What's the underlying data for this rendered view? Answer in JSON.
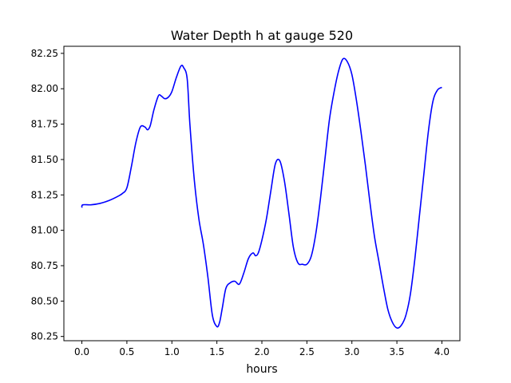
{
  "chart_data": {
    "type": "line",
    "title": "Water Depth h at gauge 520",
    "xlabel": "hours",
    "ylabel": "",
    "xlim": [
      -0.2,
      4.2
    ],
    "ylim": [
      80.22,
      82.3
    ],
    "xticks": [
      0.0,
      0.5,
      1.0,
      1.5,
      2.0,
      2.5,
      3.0,
      3.5,
      4.0
    ],
    "xtick_labels": [
      "0.0",
      "0.5",
      "1.0",
      "1.5",
      "2.0",
      "2.5",
      "3.0",
      "3.5",
      "4.0"
    ],
    "yticks": [
      80.25,
      80.5,
      80.75,
      81.0,
      81.25,
      81.5,
      81.75,
      82.0,
      82.25
    ],
    "ytick_labels": [
      "80.25",
      "80.50",
      "80.75",
      "81.00",
      "81.25",
      "81.50",
      "81.75",
      "82.00",
      "82.25"
    ],
    "grid": false,
    "series": [
      {
        "color": "#0000ff",
        "x": [
          0.0,
          0.01,
          0.1,
          0.2,
          0.3,
          0.4,
          0.45,
          0.5,
          0.55,
          0.6,
          0.65,
          0.7,
          0.73,
          0.76,
          0.8,
          0.85,
          0.88,
          0.92,
          0.96,
          1.0,
          1.05,
          1.1,
          1.13,
          1.17,
          1.2,
          1.25,
          1.3,
          1.35,
          1.4,
          1.45,
          1.5,
          1.53,
          1.56,
          1.6,
          1.65,
          1.7,
          1.75,
          1.8,
          1.85,
          1.9,
          1.93,
          1.96,
          2.0,
          2.05,
          2.1,
          2.15,
          2.2,
          2.25,
          2.3,
          2.35,
          2.4,
          2.45,
          2.5,
          2.55,
          2.6,
          2.65,
          2.7,
          2.75,
          2.8,
          2.85,
          2.9,
          2.95,
          3.0,
          3.05,
          3.1,
          3.15,
          3.2,
          3.25,
          3.3,
          3.35,
          3.4,
          3.45,
          3.5,
          3.55,
          3.6,
          3.65,
          3.7,
          3.75,
          3.8,
          3.85,
          3.9,
          3.95,
          4.0
        ],
        "y": [
          81.16,
          81.18,
          81.18,
          81.19,
          81.21,
          81.24,
          81.26,
          81.3,
          81.45,
          81.62,
          81.73,
          81.73,
          81.71,
          81.74,
          81.85,
          81.95,
          81.95,
          81.93,
          81.94,
          81.98,
          82.08,
          82.16,
          82.15,
          82.07,
          81.75,
          81.35,
          81.08,
          80.9,
          80.67,
          80.4,
          80.32,
          80.35,
          80.45,
          80.59,
          80.63,
          80.64,
          80.62,
          80.7,
          80.8,
          80.84,
          80.82,
          80.84,
          80.93,
          81.08,
          81.28,
          81.47,
          81.49,
          81.35,
          81.12,
          80.88,
          80.77,
          80.76,
          80.76,
          80.82,
          80.98,
          81.22,
          81.5,
          81.78,
          81.97,
          82.12,
          82.21,
          82.19,
          82.1,
          81.92,
          81.7,
          81.46,
          81.2,
          80.96,
          80.78,
          80.6,
          80.44,
          80.35,
          80.31,
          80.33,
          80.4,
          80.55,
          80.8,
          81.1,
          81.4,
          81.7,
          81.91,
          81.99,
          82.01
        ]
      }
    ]
  }
}
